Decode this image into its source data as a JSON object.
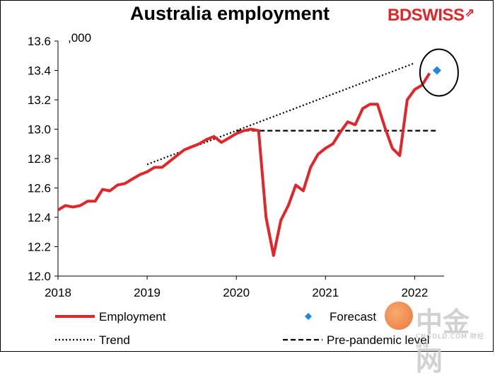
{
  "title": "Australia employment",
  "logo": {
    "part1": "BD",
    "part2": "SWISS",
    "mark": "⇗"
  },
  "unit_label": ",000",
  "watermark": {
    "text": "中金网",
    "sub": "CNGOLD.COM 财经媒体"
  },
  "chart_data": {
    "type": "line",
    "title": "Australia employment",
    "xlabel": "",
    "ylabel": ",000",
    "xlim": [
      2018.0,
      2022.33
    ],
    "ylim": [
      12.0,
      13.6
    ],
    "y_ticks": [
      "12.0",
      "12.2",
      "12.4",
      "12.6",
      "12.8",
      "13.0",
      "13.2",
      "13.4",
      "13.6"
    ],
    "x_ticks": [
      "2018",
      "2019",
      "2020",
      "2021",
      "2022"
    ],
    "grid": false,
    "series": [
      {
        "name": "Employment",
        "style": "solid",
        "color": "#e1262a",
        "x": [
          2018.0,
          2018.083,
          2018.167,
          2018.25,
          2018.333,
          2018.417,
          2018.5,
          2018.583,
          2018.667,
          2018.75,
          2018.833,
          2018.917,
          2019.0,
          2019.083,
          2019.167,
          2019.25,
          2019.333,
          2019.417,
          2019.5,
          2019.583,
          2019.667,
          2019.75,
          2019.833,
          2019.917,
          2020.0,
          2020.083,
          2020.167,
          2020.25,
          2020.333,
          2020.417,
          2020.5,
          2020.583,
          2020.667,
          2020.75,
          2020.833,
          2020.917,
          2021.0,
          2021.083,
          2021.167,
          2021.25,
          2021.333,
          2021.417,
          2021.5,
          2021.583,
          2021.667,
          2021.75,
          2021.833,
          2021.917,
          2022.0,
          2022.083,
          2022.167
        ],
        "values": [
          12.45,
          12.48,
          12.47,
          12.48,
          12.51,
          12.51,
          12.59,
          12.58,
          12.62,
          12.63,
          12.66,
          12.69,
          12.71,
          12.74,
          12.74,
          12.78,
          12.82,
          12.86,
          12.88,
          12.9,
          12.93,
          12.95,
          12.91,
          12.94,
          12.97,
          12.99,
          13.0,
          12.99,
          12.4,
          12.14,
          12.38,
          12.48,
          12.62,
          12.58,
          12.74,
          12.83,
          12.87,
          12.9,
          12.98,
          13.05,
          13.03,
          13.14,
          13.17,
          13.17,
          13.01,
          12.87,
          12.82,
          13.2,
          13.27,
          13.3,
          13.38
        ]
      },
      {
        "name": "Forecast",
        "style": "marker",
        "color": "#1e88e5",
        "x": [
          2022.25
        ],
        "values": [
          13.4
        ]
      },
      {
        "name": "Trend",
        "style": "dotted",
        "color": "#000000",
        "x": [
          2019.0,
          2022.0
        ],
        "values": [
          12.76,
          13.45
        ]
      },
      {
        "name": "Pre-pandemic level",
        "style": "dashed",
        "color": "#000000",
        "x": [
          2020.0,
          2022.25
        ],
        "values": [
          12.99,
          12.99
        ]
      }
    ],
    "annotations": [
      {
        "type": "ellipse",
        "x": 2022.25,
        "value": 13.4
      }
    ],
    "legend": {
      "placement": "bottom",
      "entries": [
        "Employment",
        "Forecast",
        "Trend",
        "Pre-pandemic level"
      ]
    }
  }
}
